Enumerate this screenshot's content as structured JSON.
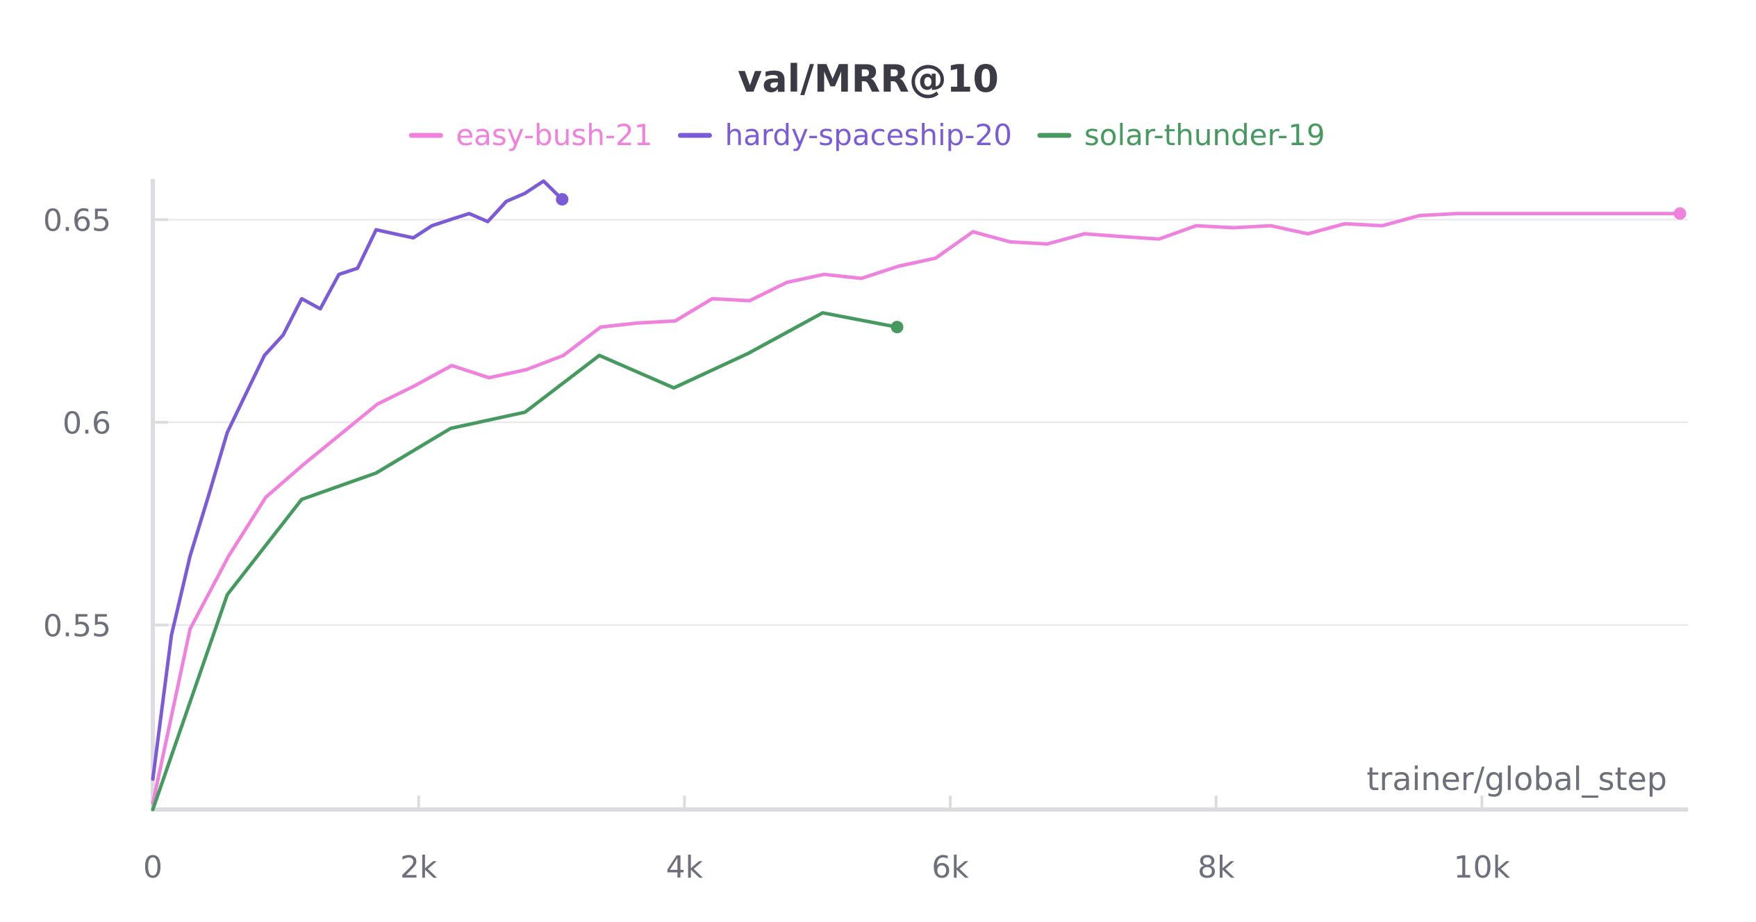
{
  "chart_data": {
    "type": "line",
    "title": "val/MRR@10",
    "xlabel": "trainer/global_step",
    "ylabel": "",
    "xlim": [
      0,
      11550
    ],
    "ylim": [
      0.5045,
      0.6605
    ],
    "x_ticks": [
      {
        "value": 0,
        "label": "0"
      },
      {
        "value": 2000,
        "label": "2k"
      },
      {
        "value": 4000,
        "label": "4k"
      },
      {
        "value": 6000,
        "label": "6k"
      },
      {
        "value": 8000,
        "label": "8k"
      },
      {
        "value": 10000,
        "label": "10k"
      }
    ],
    "y_ticks": [
      {
        "value": 0.55,
        "label": "0.55"
      },
      {
        "value": 0.6,
        "label": "0.6"
      },
      {
        "value": 0.65,
        "label": "0.65"
      }
    ],
    "grid": true,
    "legend_position": "top-center",
    "series": [
      {
        "name": "easy-bush-21",
        "color": "#ee82dc",
        "x": [
          0,
          280,
          570,
          850,
          1130,
          1410,
          1690,
          1970,
          2250,
          2530,
          2810,
          3090,
          3370,
          3650,
          3930,
          4210,
          4490,
          4770,
          5050,
          5330,
          5610,
          5890,
          6170,
          6450,
          6730,
          7010,
          7290,
          7570,
          7850,
          8130,
          8410,
          8690,
          8970,
          9250,
          9530,
          9810,
          10090,
          10370,
          10650,
          10930,
          11210,
          11490
        ],
        "y": [
          0.506,
          0.549,
          0.567,
          0.5815,
          0.5895,
          0.597,
          0.6045,
          0.609,
          0.614,
          0.611,
          0.613,
          0.6165,
          0.6235,
          0.6245,
          0.625,
          0.6305,
          0.63,
          0.6345,
          0.6365,
          0.6355,
          0.6385,
          0.6405,
          0.647,
          0.6445,
          0.644,
          0.6465,
          0.6458,
          0.6452,
          0.6485,
          0.648,
          0.6485,
          0.6465,
          0.649,
          0.6485,
          0.651,
          0.6515,
          0.6515,
          0.6515,
          0.6515,
          0.6515,
          0.6515,
          0.6515
        ]
      },
      {
        "name": "hardy-spaceship-20",
        "color": "#7c5cd6",
        "x": [
          0,
          140,
          280,
          420,
          560,
          700,
          840,
          980,
          1120,
          1260,
          1400,
          1540,
          1680,
          1820,
          1960,
          2100,
          2240,
          2380,
          2520,
          2660,
          2800,
          2940,
          3080
        ],
        "y": [
          0.512,
          0.5475,
          0.567,
          0.582,
          0.5975,
          0.607,
          0.6165,
          0.6215,
          0.6305,
          0.628,
          0.6365,
          0.638,
          0.6475,
          0.6465,
          0.6455,
          0.6485,
          0.65,
          0.6515,
          0.6495,
          0.6545,
          0.6565,
          0.6595,
          0.655
        ]
      },
      {
        "name": "solar-thunder-19",
        "color": "#479a5f",
        "x": [
          0,
          560,
          1120,
          1680,
          2240,
          2800,
          3360,
          3920,
          4480,
          5040,
          5600
        ],
        "y": [
          0.5045,
          0.5575,
          0.581,
          0.5875,
          0.5985,
          0.6025,
          0.6165,
          0.6085,
          0.617,
          0.627,
          0.6235
        ]
      }
    ]
  }
}
